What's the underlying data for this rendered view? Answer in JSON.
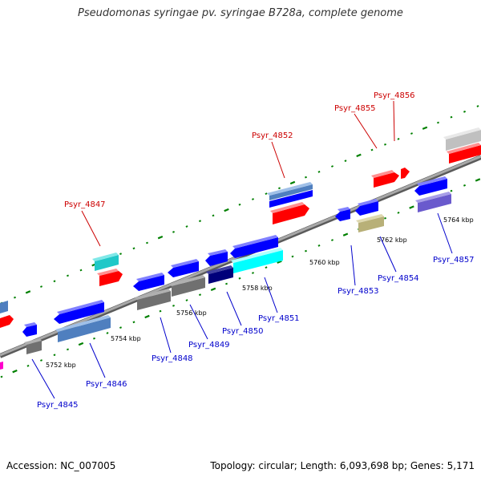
{
  "title": "Pseudomonas syringae pv. syringae B728a, complete genome",
  "footer": {
    "accession": "Accession: NC_007005",
    "topology": "Topology: circular; Length: 6,093,698 bp; Genes: 5,171"
  },
  "scale_labels": [
    "5752 kbp",
    "5754 kbp",
    "5756 kbp",
    "5758 kbp",
    "5760 kbp",
    "5762 kbp",
    "5764 kbp"
  ],
  "genes": [
    {
      "id": "Psyr_4845",
      "strand": "reverse",
      "color": "#0000ff"
    },
    {
      "id": "Psyr_4846",
      "strand": "reverse",
      "color": "#0000ff"
    },
    {
      "id": "Psyr_4847",
      "strand": "forward",
      "color": "#ff0000"
    },
    {
      "id": "Psyr_4848",
      "strand": "reverse",
      "color": "#0000ff"
    },
    {
      "id": "Psyr_4849",
      "strand": "reverse",
      "color": "#0000ff"
    },
    {
      "id": "Psyr_4850",
      "strand": "reverse",
      "color": "#0000ff"
    },
    {
      "id": "Psyr_4851",
      "strand": "reverse",
      "color": "#0000ff"
    },
    {
      "id": "Psyr_4852",
      "strand": "forward",
      "color": "#ff0000"
    },
    {
      "id": "Psyr_4853",
      "strand": "reverse",
      "color": "#0000ff"
    },
    {
      "id": "Psyr_4854",
      "strand": "reverse",
      "color": "#0000ff"
    },
    {
      "id": "Psyr_4855",
      "strand": "forward",
      "color": "#ff0000"
    },
    {
      "id": "Psyr_4856",
      "strand": "forward",
      "color": "#ff0000"
    },
    {
      "id": "Psyr_4857",
      "strand": "reverse",
      "color": "#0000ff"
    }
  ],
  "colors": {
    "backbone": "#8a8a8a",
    "tick": "#008000",
    "label_forward": "#cc0000",
    "label_reverse": "#0000cc",
    "cog_teal": "#20c8c8",
    "cog_cyan": "#00ffff",
    "cog_steel": "#4f7fbf",
    "cog_gray": "#707070",
    "cog_navy": "#00007a",
    "cog_khaki": "#b8b078",
    "cog_purple": "#6a5acd",
    "cog_lightgray": "#c0c0c0",
    "cog_magenta": "#ff00cc"
  }
}
